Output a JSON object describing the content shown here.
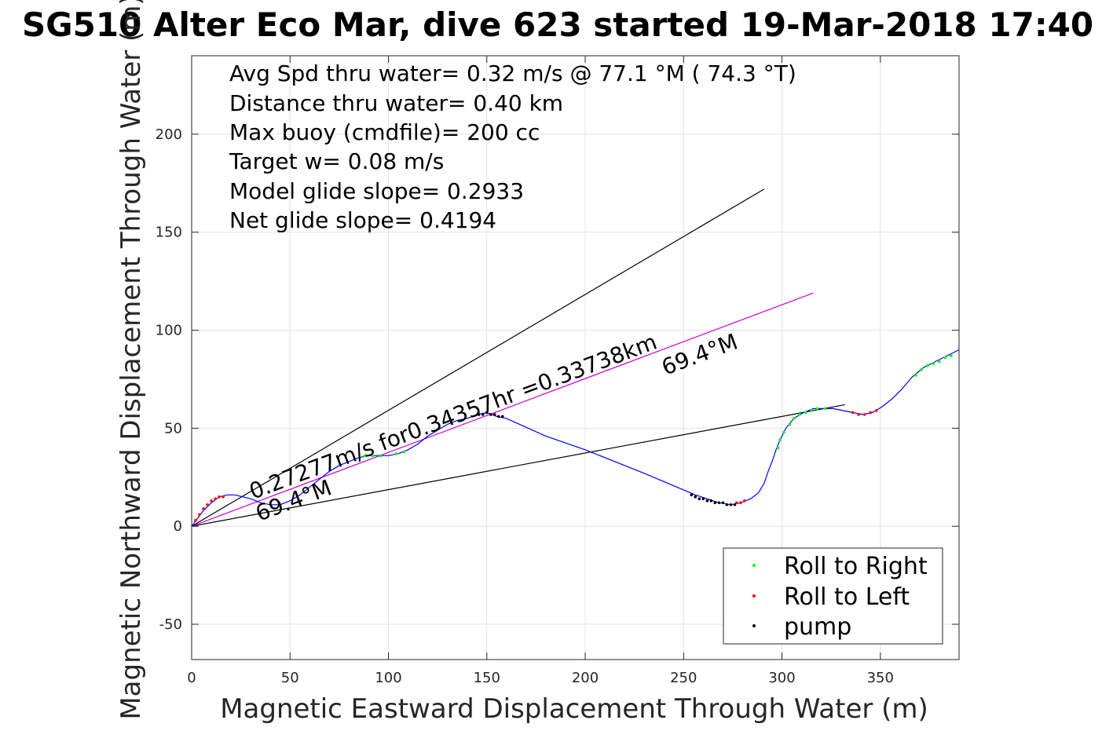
{
  "chart_data": {
    "type": "line",
    "title": "SG510 Alter Eco Mar, dive 623 started 19-Mar-2018 17:40",
    "xlabel": "Magnetic Eastward Displacement Through Water (m)",
    "ylabel": "Magnetic Northward Displacement Through Water (m)",
    "xlim": [
      0,
      390
    ],
    "ylim": [
      -68,
      240
    ],
    "x_ticks": [
      0,
      50,
      100,
      150,
      200,
      250,
      300,
      350
    ],
    "y_ticks": [
      -50,
      0,
      50,
      100,
      150,
      200
    ],
    "grid": true,
    "legend_position": "bottom-right",
    "stats": [
      "Avg Spd thru water=  0.32 m/s @  77.1 °M ( 74.3 °T)",
      "Distance thru water=  0.40 km",
      "Max buoy (cmdfile)= 200 cc",
      "Target w= 0.08 m/s",
      "Model glide slope= 0.2933",
      "Net glide slope= 0.4194"
    ],
    "annotations": {
      "speed_line": "0.27277m/s for0.34357hr =0.33738km",
      "heading_start": "69.4°M",
      "heading_end": "69.4°M"
    },
    "track": {
      "name": "track",
      "color": "#0000ff",
      "points": [
        [
          0,
          0
        ],
        [
          3,
          4
        ],
        [
          6,
          8
        ],
        [
          10,
          12
        ],
        [
          14,
          15
        ],
        [
          18,
          16
        ],
        [
          22,
          16
        ],
        [
          26,
          15
        ],
        [
          30,
          14
        ],
        [
          35,
          12
        ],
        [
          40,
          11
        ],
        [
          45,
          11
        ],
        [
          50,
          13
        ],
        [
          55,
          16
        ],
        [
          60,
          20
        ],
        [
          65,
          24
        ],
        [
          70,
          28
        ],
        [
          75,
          31
        ],
        [
          80,
          33
        ],
        [
          85,
          35
        ],
        [
          90,
          36
        ],
        [
          95,
          36
        ],
        [
          100,
          36
        ],
        [
          105,
          37
        ],
        [
          110,
          39
        ],
        [
          115,
          42
        ],
        [
          120,
          46
        ],
        [
          125,
          49
        ],
        [
          130,
          52
        ],
        [
          135,
          54
        ],
        [
          140,
          55
        ],
        [
          145,
          57
        ],
        [
          150,
          58
        ],
        [
          155,
          56
        ],
        [
          160,
          55
        ],
        [
          180,
          46
        ],
        [
          200,
          39
        ],
        [
          230,
          27
        ],
        [
          256,
          16
        ],
        [
          262,
          14
        ],
        [
          268,
          12
        ],
        [
          274,
          11
        ],
        [
          279,
          12
        ],
        [
          284,
          14
        ],
        [
          288,
          17
        ],
        [
          291,
          22
        ],
        [
          293,
          28
        ],
        [
          295,
          33
        ],
        [
          297,
          39
        ],
        [
          299,
          44
        ],
        [
          302,
          50
        ],
        [
          306,
          55
        ],
        [
          311,
          58
        ],
        [
          316,
          60
        ],
        [
          321,
          60
        ],
        [
          326,
          60
        ],
        [
          331,
          59
        ],
        [
          336,
          58
        ],
        [
          341,
          57
        ],
        [
          346,
          58
        ],
        [
          351,
          61
        ],
        [
          356,
          65
        ],
        [
          361,
          70
        ],
        [
          366,
          76
        ],
        [
          372,
          81
        ],
        [
          378,
          84
        ],
        [
          384,
          87
        ],
        [
          390,
          90
        ]
      ]
    },
    "roll_right": {
      "name": "Roll to Right",
      "color": "#00ff00",
      "points": [
        [
          88,
          36
        ],
        [
          92,
          36
        ],
        [
          96,
          36
        ],
        [
          104,
          37
        ],
        [
          108,
          38
        ],
        [
          298,
          40
        ],
        [
          299,
          44
        ],
        [
          301,
          48
        ],
        [
          304,
          52
        ],
        [
          306,
          55
        ],
        [
          309,
          57
        ],
        [
          312,
          58
        ],
        [
          315,
          59
        ],
        [
          318,
          60
        ],
        [
          322,
          60
        ],
        [
          368,
          77
        ],
        [
          371,
          80
        ],
        [
          374,
          82
        ],
        [
          377,
          83
        ],
        [
          380,
          84
        ],
        [
          383,
          86
        ],
        [
          386,
          87
        ]
      ]
    },
    "roll_left": {
      "name": "Roll to Left",
      "color": "#ff0000",
      "points": [
        [
          2,
          3
        ],
        [
          4,
          6
        ],
        [
          6,
          9
        ],
        [
          8,
          11
        ],
        [
          10,
          13
        ],
        [
          12,
          14
        ],
        [
          14,
          15
        ],
        [
          16,
          15
        ],
        [
          277,
          12
        ],
        [
          279,
          12
        ],
        [
          281,
          13
        ],
        [
          336,
          58
        ],
        [
          339,
          57
        ],
        [
          342,
          57
        ],
        [
          345,
          58
        ],
        [
          348,
          59
        ]
      ]
    },
    "pump": {
      "name": "pump",
      "color": "#000000",
      "points": [
        [
          146,
          57
        ],
        [
          148,
          57
        ],
        [
          150,
          58
        ],
        [
          152,
          57
        ],
        [
          154,
          57
        ],
        [
          156,
          56
        ],
        [
          158,
          56
        ],
        [
          254,
          16
        ],
        [
          256,
          15
        ],
        [
          258,
          14
        ],
        [
          260,
          14
        ],
        [
          262,
          13
        ],
        [
          264,
          13
        ],
        [
          266,
          12
        ],
        [
          268,
          12
        ],
        [
          270,
          12
        ],
        [
          272,
          11
        ],
        [
          274,
          11
        ],
        [
          276,
          11
        ]
      ]
    },
    "reference_lines": [
      {
        "name": "glide-slope-upper",
        "color": "#000000",
        "from": [
          0,
          0
        ],
        "to": [
          291,
          172
        ]
      },
      {
        "name": "heading-line",
        "color": "#cc00cc",
        "from": [
          0,
          0
        ],
        "to": [
          316,
          119
        ]
      },
      {
        "name": "glide-slope-lower",
        "color": "#000000",
        "from": [
          0,
          0
        ],
        "to": [
          332,
          62
        ]
      }
    ]
  }
}
